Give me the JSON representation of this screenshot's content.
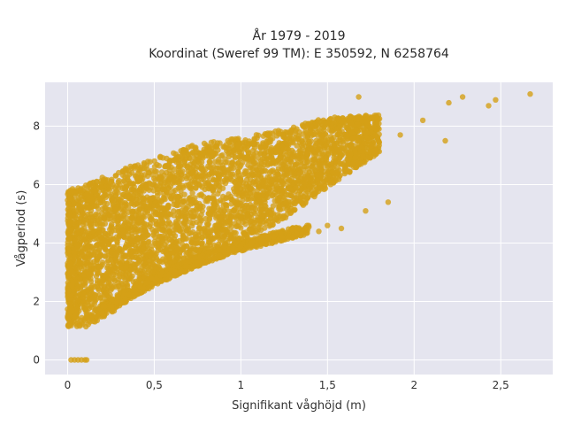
{
  "chart_data": {
    "type": "scatter",
    "title_line1": "År 1979 - 2019",
    "title_line2": "Koordinat (Sweref 99 TM): E 350592, N 6258764",
    "xlabel": "Signifikant våghöjd (m)",
    "ylabel": "Vågperiod (s)",
    "xlim": [
      -0.13,
      2.8
    ],
    "ylim": [
      -0.5,
      9.5
    ],
    "x_ticks": [
      0,
      0.5,
      1,
      1.5,
      2,
      2.5
    ],
    "x_tick_labels": [
      "0",
      "0,5",
      "1",
      "1,5",
      "2",
      "2,5"
    ],
    "y_ticks": [
      0,
      2,
      4,
      6,
      8
    ],
    "y_tick_labels": [
      "0",
      "2",
      "4",
      "6",
      "8"
    ],
    "grid": true,
    "colors": {
      "plot_background": "#e5e5ef",
      "grid": "#ffffff",
      "marker": "#d4a017"
    },
    "series": [
      {
        "main_cloud_upper_edge": [
          [
            0.0,
            5.8
          ],
          [
            0.1,
            6.0
          ],
          [
            0.25,
            6.4
          ],
          [
            0.5,
            6.9
          ],
          [
            0.75,
            7.4
          ],
          [
            1.0,
            7.6
          ],
          [
            1.25,
            7.9
          ],
          [
            1.5,
            8.3
          ],
          [
            1.8,
            8.4
          ]
        ],
        "main_cloud_lower_edge": [
          [
            0.0,
            1.1
          ],
          [
            0.1,
            1.1
          ],
          [
            0.25,
            1.6
          ],
          [
            0.5,
            2.6
          ],
          [
            0.75,
            3.4
          ],
          [
            1.0,
            4.1
          ],
          [
            1.25,
            4.8
          ],
          [
            1.5,
            5.9
          ],
          [
            1.8,
            7.1
          ]
        ],
        "secondary_band": [
          [
            0.2,
            1.7
          ],
          [
            0.4,
            2.4
          ],
          [
            0.6,
            3.0
          ],
          [
            0.8,
            3.5
          ],
          [
            1.0,
            3.9
          ],
          [
            1.2,
            4.2
          ],
          [
            1.4,
            4.5
          ]
        ],
        "zero_period_points": [
          [
            0.02,
            0
          ],
          [
            0.04,
            0
          ],
          [
            0.06,
            0
          ],
          [
            0.08,
            0
          ],
          [
            0.1,
            0
          ],
          [
            0.11,
            0
          ]
        ],
        "outliers": [
          [
            2.67,
            9.1
          ],
          [
            2.47,
            8.9
          ],
          [
            2.43,
            8.7
          ],
          [
            2.28,
            9.0
          ],
          [
            2.2,
            8.8
          ],
          [
            2.18,
            7.5
          ],
          [
            2.05,
            8.2
          ],
          [
            1.92,
            7.7
          ],
          [
            1.85,
            5.4
          ],
          [
            1.72,
            5.1
          ],
          [
            1.58,
            4.5
          ],
          [
            1.5,
            4.6
          ],
          [
            1.45,
            4.4
          ],
          [
            1.68,
            9.0
          ]
        ]
      }
    ]
  }
}
